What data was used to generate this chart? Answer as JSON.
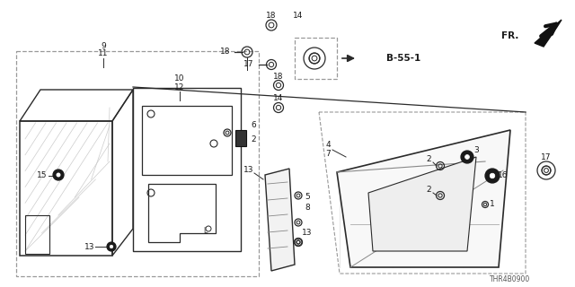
{
  "bg_color": "#ffffff",
  "lc": "#2a2a2a",
  "dc": "#999999",
  "part_ref": "THR4B0900",
  "B55": "B-55-1",
  "FR": "FR."
}
